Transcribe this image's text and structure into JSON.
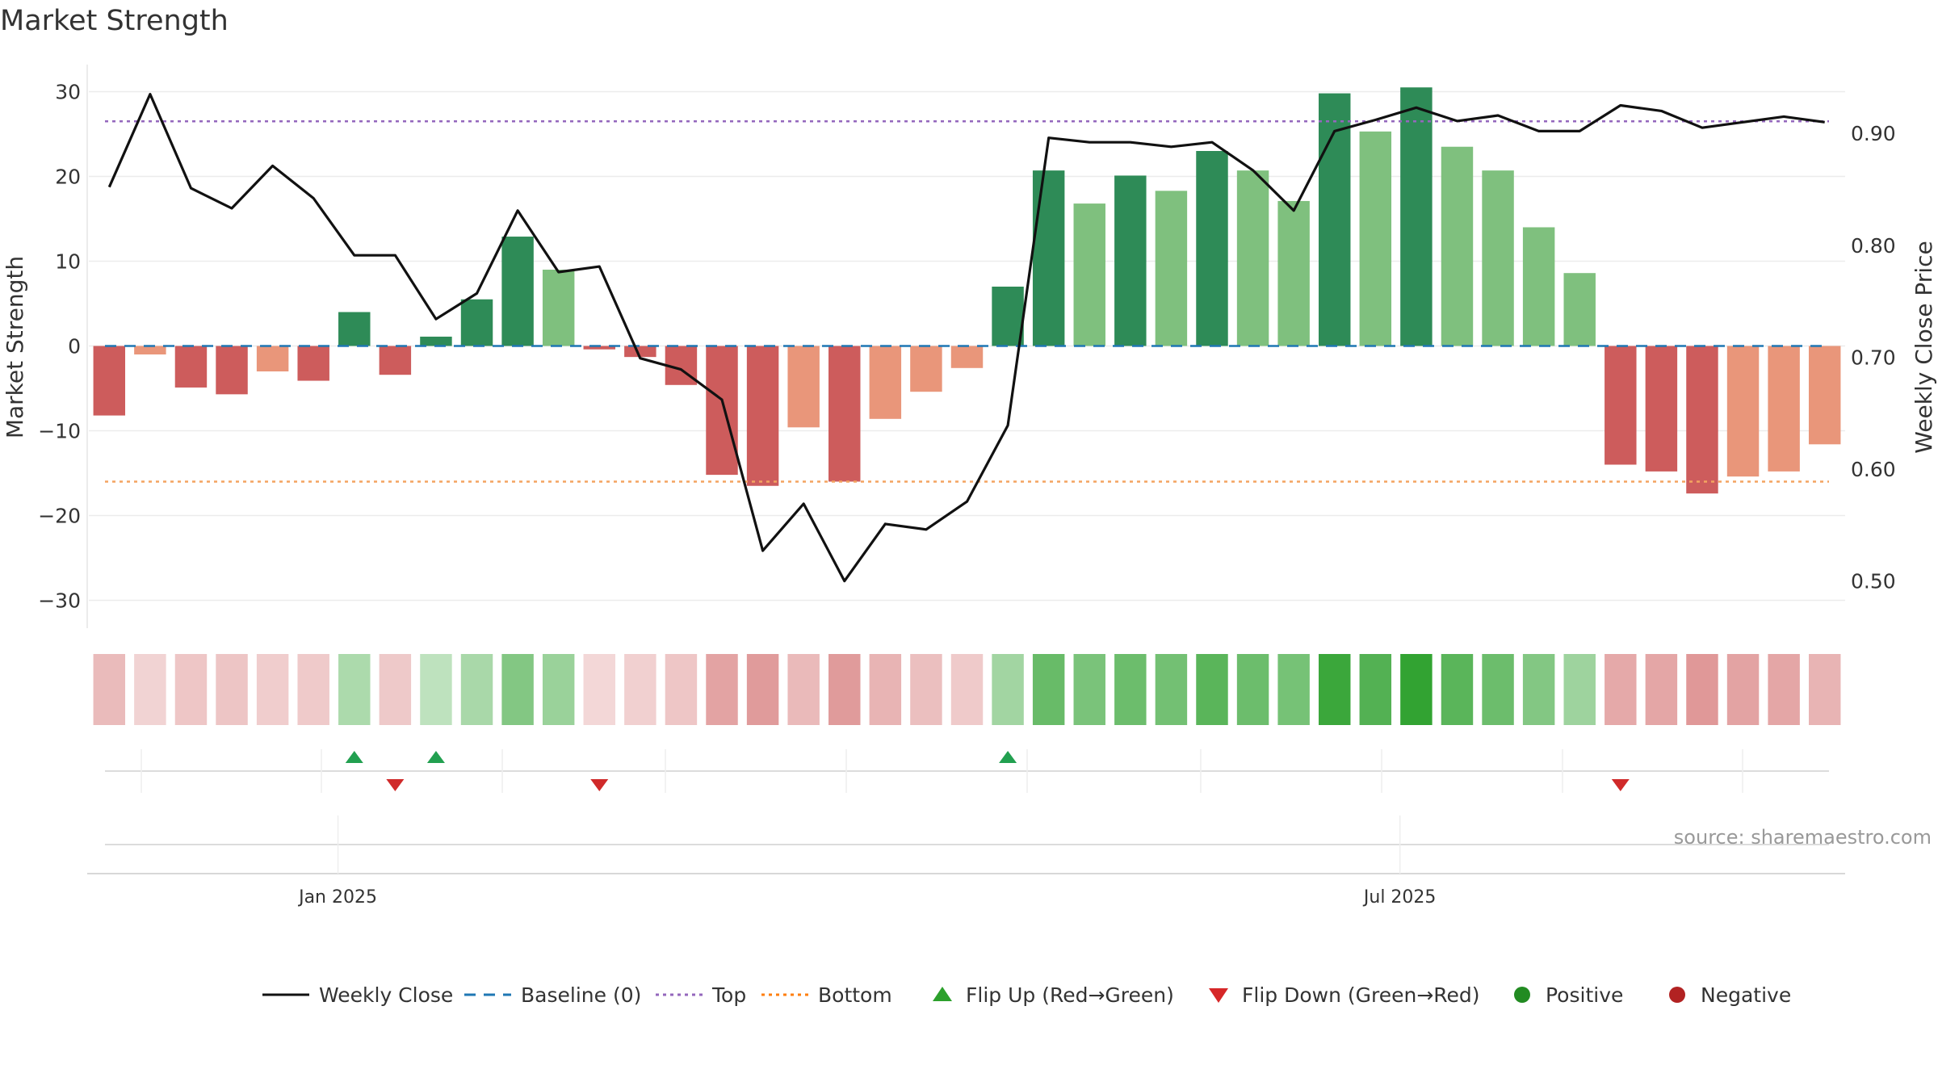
{
  "chart_data": {
    "type": "bar",
    "title": "Market Strength",
    "ylabel": "Market Strength",
    "ylabel_right": "Weekly Close Price",
    "ylim": [
      -33,
      33
    ],
    "ylim_right": [
      0.46,
      0.96
    ],
    "yticks": [
      30,
      20,
      10,
      0,
      -10,
      -20,
      -30
    ],
    "yticks_labels": [
      "30",
      "20",
      "10",
      "0",
      "−10",
      "−20",
      "−30"
    ],
    "yticks_right": [
      0.9,
      0.8,
      0.7,
      0.6,
      0.5
    ],
    "yticks_right_labels": [
      "0.90",
      "0.80",
      "0.70",
      "0.60",
      "0.50"
    ],
    "xtick_labels": [
      {
        "label": "Jan 2025",
        "index": 5.6
      },
      {
        "label": "Jul 2025",
        "index": 31.6
      }
    ],
    "top_level": 26.5,
    "bottom_level": -16,
    "baseline": 0,
    "strength": [
      -8.2,
      -1,
      -4.9,
      -5.7,
      -3,
      -4.1,
      4,
      -3.4,
      1.1,
      5.5,
      12.9,
      9,
      -0.4,
      -1.3,
      -4.6,
      -15.2,
      -16.5,
      -9.6,
      -16,
      -8.6,
      -5.4,
      -2.6,
      7,
      20.7,
      16.8,
      20.1,
      18.3,
      23,
      20.7,
      17.1,
      29.8,
      25.3,
      30.5,
      23.5,
      20.7,
      14,
      8.6,
      -14,
      -14.8,
      -17.4,
      -15.4,
      -14.8,
      -11.6
    ],
    "strength_style": [
      "strong",
      "weak",
      "strong",
      "strong",
      "weak",
      "strong",
      "strong",
      "strong",
      "strong",
      "strong",
      "strong",
      "weak",
      "strong",
      "strong",
      "strong",
      "strong",
      "strong",
      "weak",
      "strong",
      "weak",
      "weak",
      "weak",
      "strong",
      "strong",
      "weak",
      "strong",
      "weak",
      "strong",
      "weak",
      "weak",
      "strong",
      "weak",
      "strong",
      "weak",
      "weak",
      "weak",
      "weak",
      "strong",
      "strong",
      "strong",
      "weak",
      "weak",
      "weak"
    ],
    "heat_intensity": [
      0.35,
      0.18,
      0.27,
      0.28,
      0.22,
      0.24,
      0.32,
      0.25,
      0.22,
      0.34,
      0.55,
      0.42,
      0.15,
      0.2,
      0.27,
      0.52,
      0.58,
      0.36,
      0.58,
      0.4,
      0.32,
      0.24,
      0.38,
      0.7,
      0.6,
      0.68,
      0.64,
      0.78,
      0.68,
      0.62,
      0.95,
      0.82,
      1.0,
      0.78,
      0.68,
      0.55,
      0.4,
      0.48,
      0.5,
      0.6,
      0.52,
      0.5,
      0.4
    ],
    "weekly_close": [
      0.852,
      0.935,
      0.851,
      0.833,
      0.871,
      0.842,
      0.791,
      0.791,
      0.734,
      0.757,
      0.831,
      0.776,
      0.781,
      0.699,
      0.689,
      0.662,
      0.527,
      0.569,
      0.5,
      0.551,
      0.546,
      0.571,
      0.639,
      0.896,
      0.892,
      0.892,
      0.888,
      0.892,
      0.867,
      0.831,
      0.902,
      0.912,
      0.923,
      0.911,
      0.916,
      0.902,
      0.902,
      0.925,
      0.92,
      0.905,
      0.91,
      0.915,
      0.91
    ],
    "flip_up_indices": [
      6,
      8,
      22
    ],
    "flip_down_indices": [
      7,
      12,
      37
    ],
    "legend": [
      {
        "label": "Weekly Close",
        "kind": "line",
        "color": "#111111"
      },
      {
        "label": "Baseline (0)",
        "kind": "dash",
        "color": "#1f77b4"
      },
      {
        "label": "Top",
        "kind": "dot",
        "color": "#9467bd"
      },
      {
        "label": "Bottom",
        "kind": "dot",
        "color": "#ff7f0e"
      },
      {
        "label": "Flip Up (Red→Green)",
        "kind": "tri-up",
        "color": "#2ca02c"
      },
      {
        "label": "Flip Down (Green→Red)",
        "kind": "tri-down",
        "color": "#d62728"
      },
      {
        "label": "Positive",
        "kind": "circle",
        "color": "#228b22"
      },
      {
        "label": "Negative",
        "kind": "circle",
        "color": "#b22222"
      }
    ],
    "legend_placement": "bottom",
    "grid": true
  },
  "colors": {
    "pos_strong": "#2e8b57",
    "pos_weak": "#7fc07e",
    "neg_strong": "#cd5c5c",
    "neg_weak": "#e9967a",
    "heat_pos": "#2ca02c",
    "heat_neg": "#cd5c5c",
    "flip_up": "#22a050",
    "flip_down": "#d02a2a",
    "line": "#111111",
    "baseline": "#1f77b4",
    "top": "#9467bd",
    "bottom": "#f4a460"
  },
  "source_text": "source: sharemaestro.com"
}
